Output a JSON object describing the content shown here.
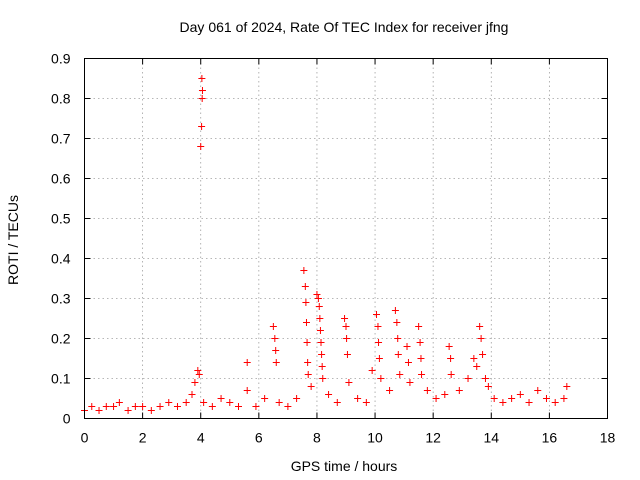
{
  "chart_data": {
    "type": "scatter",
    "title": "Day 061 of 2024, Rate Of TEC Index for receiver jfng",
    "xlabel": "GPS time / hours",
    "ylabel": "ROTI / TECUs",
    "xlim": [
      0,
      18
    ],
    "ylim": [
      0,
      0.9
    ],
    "xticks": [
      0,
      2,
      4,
      6,
      8,
      10,
      12,
      14,
      16,
      18
    ],
    "yticks": [
      0,
      0.1,
      0.2,
      0.3,
      0.4,
      0.5,
      0.6,
      0.7,
      0.8,
      0.9
    ],
    "xtick_labels": [
      "0",
      "2",
      "4",
      "6",
      "8",
      "10",
      "12",
      "14",
      "16",
      "18"
    ],
    "ytick_labels": [
      "0",
      "0.1",
      "0.2",
      "0.3",
      "0.4",
      "0.5",
      "0.6",
      "0.7",
      "0.8",
      "0.9"
    ],
    "grid": true,
    "marker": "+",
    "color": "#ff0000",
    "series": [
      {
        "name": "ROTI",
        "points": [
          [
            0.0,
            0.02
          ],
          [
            0.25,
            0.03
          ],
          [
            0.5,
            0.02
          ],
          [
            0.75,
            0.03
          ],
          [
            1.0,
            0.03
          ],
          [
            1.2,
            0.04
          ],
          [
            1.5,
            0.02
          ],
          [
            1.75,
            0.03
          ],
          [
            2.0,
            0.03
          ],
          [
            2.3,
            0.02
          ],
          [
            2.6,
            0.03
          ],
          [
            2.9,
            0.04
          ],
          [
            3.2,
            0.03
          ],
          [
            3.5,
            0.04
          ],
          [
            3.7,
            0.06
          ],
          [
            3.8,
            0.09
          ],
          [
            3.9,
            0.12
          ],
          [
            3.95,
            0.11
          ],
          [
            4.0,
            0.68
          ],
          [
            4.03,
            0.73
          ],
          [
            4.05,
            0.8
          ],
          [
            4.06,
            0.82
          ],
          [
            4.04,
            0.85
          ],
          [
            4.1,
            0.04
          ],
          [
            4.4,
            0.03
          ],
          [
            4.7,
            0.05
          ],
          [
            5.0,
            0.04
          ],
          [
            5.3,
            0.03
          ],
          [
            5.6,
            0.14
          ],
          [
            5.6,
            0.07
          ],
          [
            5.9,
            0.03
          ],
          [
            6.2,
            0.05
          ],
          [
            6.5,
            0.23
          ],
          [
            6.55,
            0.2
          ],
          [
            6.58,
            0.17
          ],
          [
            6.6,
            0.14
          ],
          [
            6.7,
            0.04
          ],
          [
            7.0,
            0.03
          ],
          [
            7.3,
            0.05
          ],
          [
            7.55,
            0.37
          ],
          [
            7.6,
            0.33
          ],
          [
            7.62,
            0.29
          ],
          [
            7.64,
            0.24
          ],
          [
            7.66,
            0.19
          ],
          [
            7.68,
            0.14
          ],
          [
            7.7,
            0.11
          ],
          [
            7.8,
            0.08
          ],
          [
            8.0,
            0.31
          ],
          [
            8.05,
            0.3
          ],
          [
            8.08,
            0.28
          ],
          [
            8.1,
            0.25
          ],
          [
            8.12,
            0.22
          ],
          [
            8.14,
            0.19
          ],
          [
            8.16,
            0.16
          ],
          [
            8.18,
            0.13
          ],
          [
            8.2,
            0.1
          ],
          [
            8.4,
            0.06
          ],
          [
            8.7,
            0.04
          ],
          [
            8.95,
            0.25
          ],
          [
            9.0,
            0.23
          ],
          [
            9.02,
            0.2
          ],
          [
            9.05,
            0.16
          ],
          [
            9.1,
            0.09
          ],
          [
            9.4,
            0.05
          ],
          [
            9.7,
            0.04
          ],
          [
            9.9,
            0.12
          ],
          [
            10.05,
            0.26
          ],
          [
            10.1,
            0.23
          ],
          [
            10.12,
            0.19
          ],
          [
            10.15,
            0.15
          ],
          [
            10.2,
            0.1
          ],
          [
            10.5,
            0.07
          ],
          [
            10.7,
            0.27
          ],
          [
            10.75,
            0.24
          ],
          [
            10.78,
            0.2
          ],
          [
            10.8,
            0.16
          ],
          [
            10.85,
            0.11
          ],
          [
            11.1,
            0.18
          ],
          [
            11.15,
            0.14
          ],
          [
            11.2,
            0.09
          ],
          [
            11.5,
            0.23
          ],
          [
            11.55,
            0.19
          ],
          [
            11.58,
            0.15
          ],
          [
            11.6,
            0.11
          ],
          [
            11.8,
            0.07
          ],
          [
            12.1,
            0.05
          ],
          [
            12.4,
            0.06
          ],
          [
            12.55,
            0.18
          ],
          [
            12.6,
            0.15
          ],
          [
            12.62,
            0.11
          ],
          [
            12.9,
            0.07
          ],
          [
            13.2,
            0.1
          ],
          [
            13.4,
            0.15
          ],
          [
            13.5,
            0.13
          ],
          [
            13.6,
            0.23
          ],
          [
            13.65,
            0.2
          ],
          [
            13.7,
            0.16
          ],
          [
            13.8,
            0.1
          ],
          [
            13.9,
            0.08
          ],
          [
            14.1,
            0.05
          ],
          [
            14.4,
            0.04
          ],
          [
            14.7,
            0.05
          ],
          [
            15.0,
            0.06
          ],
          [
            15.3,
            0.04
          ],
          [
            15.6,
            0.07
          ],
          [
            15.9,
            0.05
          ],
          [
            16.2,
            0.04
          ],
          [
            16.5,
            0.05
          ],
          [
            16.6,
            0.08
          ]
        ]
      }
    ]
  }
}
